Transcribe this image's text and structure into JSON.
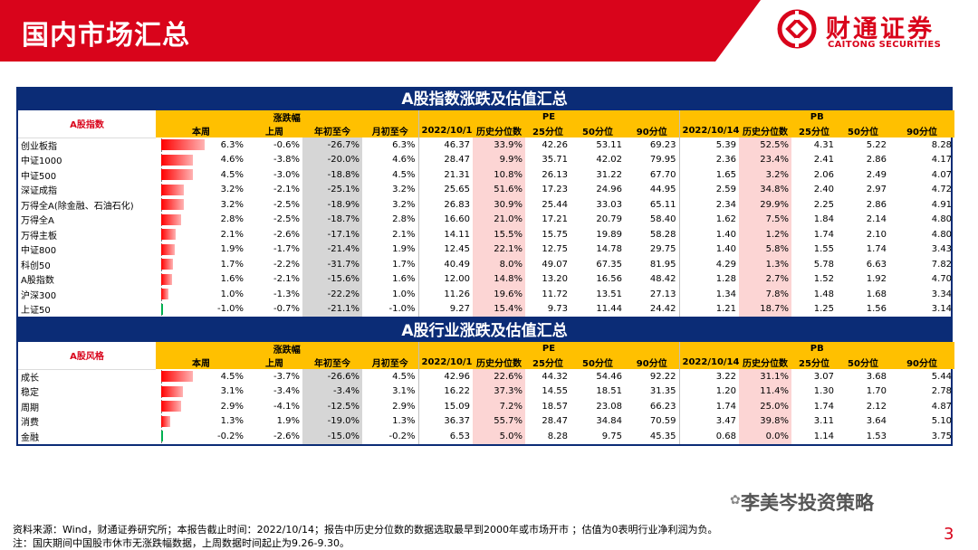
{
  "header": {
    "title": "国内市场汇总",
    "logo_cn": "财通证券",
    "logo_en": "CAITONG SECURITIES"
  },
  "index_table": {
    "title": "A股指数涨跌及估值汇总",
    "corner": "A股指数",
    "group_change": "涨跌幅",
    "group_pe": "PE",
    "group_pb": "PB",
    "cols_change": [
      "本周",
      "上周",
      "年初至今",
      "月初至今"
    ],
    "cols_val": [
      "2022/10/14",
      "历史分位数",
      "25分位",
      "50分位",
      "90分位"
    ],
    "rows": [
      {
        "name": "创业板指",
        "wk": "6.3%",
        "wk_num": 6.3,
        "lw": "-0.6%",
        "ytd": "-26.7%",
        "mtd": "6.3%",
        "pe": [
          "46.37",
          "33.9%",
          "42.26",
          "53.11",
          "69.23"
        ],
        "pb": [
          "5.39",
          "52.5%",
          "4.31",
          "5.22",
          "8.28"
        ]
      },
      {
        "name": "中证1000",
        "wk": "4.6%",
        "wk_num": 4.6,
        "lw": "-3.8%",
        "ytd": "-20.0%",
        "mtd": "4.6%",
        "pe": [
          "28.47",
          "9.9%",
          "35.71",
          "42.02",
          "79.95"
        ],
        "pb": [
          "2.36",
          "23.4%",
          "2.41",
          "2.86",
          "4.17"
        ]
      },
      {
        "name": "中证500",
        "wk": "4.5%",
        "wk_num": 4.5,
        "lw": "-3.0%",
        "ytd": "-18.8%",
        "mtd": "4.5%",
        "pe": [
          "21.31",
          "10.8%",
          "26.13",
          "31.22",
          "67.70"
        ],
        "pb": [
          "1.65",
          "3.2%",
          "2.06",
          "2.49",
          "4.07"
        ]
      },
      {
        "name": "深证成指",
        "wk": "3.2%",
        "wk_num": 3.2,
        "lw": "-2.1%",
        "ytd": "-25.1%",
        "mtd": "3.2%",
        "pe": [
          "25.65",
          "51.6%",
          "17.23",
          "24.96",
          "44.95"
        ],
        "pb": [
          "2.59",
          "34.8%",
          "2.40",
          "2.97",
          "4.72"
        ]
      },
      {
        "name": "万得全A(除金融、石油石化)",
        "wk": "3.2%",
        "wk_num": 3.2,
        "lw": "-2.5%",
        "ytd": "-18.9%",
        "mtd": "3.2%",
        "pe": [
          "26.83",
          "30.9%",
          "25.44",
          "33.03",
          "65.11"
        ],
        "pb": [
          "2.34",
          "29.9%",
          "2.25",
          "2.86",
          "4.91"
        ]
      },
      {
        "name": "万得全A",
        "wk": "2.8%",
        "wk_num": 2.8,
        "lw": "-2.5%",
        "ytd": "-18.7%",
        "mtd": "2.8%",
        "pe": [
          "16.60",
          "21.0%",
          "17.21",
          "20.79",
          "58.40"
        ],
        "pb": [
          "1.62",
          "7.5%",
          "1.84",
          "2.14",
          "4.80"
        ]
      },
      {
        "name": "万得主板",
        "wk": "2.1%",
        "wk_num": 2.1,
        "lw": "-2.6%",
        "ytd": "-17.1%",
        "mtd": "2.1%",
        "pe": [
          "14.11",
          "15.5%",
          "15.75",
          "19.89",
          "58.28"
        ],
        "pb": [
          "1.40",
          "1.2%",
          "1.74",
          "2.10",
          "4.80"
        ]
      },
      {
        "name": "中证800",
        "wk": "1.9%",
        "wk_num": 1.9,
        "lw": "-1.7%",
        "ytd": "-21.4%",
        "mtd": "1.9%",
        "pe": [
          "12.45",
          "22.1%",
          "12.75",
          "14.78",
          "29.75"
        ],
        "pb": [
          "1.40",
          "5.8%",
          "1.55",
          "1.74",
          "3.43"
        ]
      },
      {
        "name": "科创50",
        "wk": "1.7%",
        "wk_num": 1.7,
        "lw": "-2.2%",
        "ytd": "-31.7%",
        "mtd": "1.7%",
        "pe": [
          "40.49",
          "8.0%",
          "49.07",
          "67.35",
          "81.95"
        ],
        "pb": [
          "4.29",
          "1.3%",
          "5.78",
          "6.63",
          "7.82"
        ]
      },
      {
        "name": "A股指数",
        "wk": "1.6%",
        "wk_num": 1.6,
        "lw": "-2.1%",
        "ytd": "-15.6%",
        "mtd": "1.6%",
        "pe": [
          "12.00",
          "14.8%",
          "13.20",
          "16.56",
          "48.42"
        ],
        "pb": [
          "1.28",
          "2.7%",
          "1.52",
          "1.92",
          "4.70"
        ]
      },
      {
        "name": "沪深300",
        "wk": "1.0%",
        "wk_num": 1.0,
        "lw": "-1.3%",
        "ytd": "-22.2%",
        "mtd": "1.0%",
        "pe": [
          "11.26",
          "19.6%",
          "11.72",
          "13.51",
          "27.13"
        ],
        "pb": [
          "1.34",
          "7.8%",
          "1.48",
          "1.68",
          "3.34"
        ]
      },
      {
        "name": "上证50",
        "wk": "-1.0%",
        "wk_num": -1.0,
        "lw": "-0.7%",
        "ytd": "-21.1%",
        "mtd": "-1.0%",
        "pe": [
          "9.27",
          "15.4%",
          "9.73",
          "11.44",
          "24.42"
        ],
        "pb": [
          "1.21",
          "18.7%",
          "1.25",
          "1.56",
          "3.14"
        ]
      }
    ]
  },
  "style_table": {
    "title": "A股行业涨跌及估值汇总",
    "corner": "A股风格",
    "group_change": "涨跌幅",
    "group_pe": "PE",
    "group_pb": "PB",
    "cols_change": [
      "本周",
      "上周",
      "年初至今",
      "月初至今"
    ],
    "cols_val": [
      "2022/10/14",
      "历史分位数",
      "25分位",
      "50分位",
      "90分位"
    ],
    "rows": [
      {
        "name": "成长",
        "wk": "4.5%",
        "wk_num": 4.5,
        "lw": "-3.7%",
        "ytd": "-26.6%",
        "mtd": "4.5%",
        "pe": [
          "42.96",
          "22.6%",
          "44.32",
          "54.46",
          "92.22"
        ],
        "pb": [
          "3.22",
          "31.1%",
          "3.07",
          "3.68",
          "5.44"
        ]
      },
      {
        "name": "稳定",
        "wk": "3.1%",
        "wk_num": 3.1,
        "lw": "-3.4%",
        "ytd": "-3.4%",
        "mtd": "3.1%",
        "pe": [
          "16.22",
          "37.3%",
          "14.55",
          "18.51",
          "31.35"
        ],
        "pb": [
          "1.20",
          "11.4%",
          "1.30",
          "1.70",
          "2.78"
        ]
      },
      {
        "name": "周期",
        "wk": "2.9%",
        "wk_num": 2.9,
        "lw": "-4.1%",
        "ytd": "-12.5%",
        "mtd": "2.9%",
        "pe": [
          "15.09",
          "7.2%",
          "18.57",
          "23.08",
          "66.23"
        ],
        "pb": [
          "1.74",
          "25.0%",
          "1.74",
          "2.12",
          "4.87"
        ]
      },
      {
        "name": "消费",
        "wk": "1.3%",
        "wk_num": 1.3,
        "lw": "1.9%",
        "ytd": "-19.0%",
        "mtd": "1.3%",
        "pe": [
          "36.37",
          "55.7%",
          "28.47",
          "34.84",
          "70.59"
        ],
        "pb": [
          "3.47",
          "39.8%",
          "3.11",
          "3.64",
          "5.10"
        ]
      },
      {
        "name": "金融",
        "wk": "-0.2%",
        "wk_num": -0.2,
        "lw": "-2.6%",
        "ytd": "-15.0%",
        "mtd": "-0.2%",
        "pe": [
          "6.53",
          "5.0%",
          "8.28",
          "9.75",
          "45.35"
        ],
        "pb": [
          "0.68",
          "0.0%",
          "1.14",
          "1.53",
          "3.75"
        ]
      }
    ]
  },
  "footnotes": {
    "line1": "资料来源：Wind，财通证券研究所；本报告截止时间：2022/10/14；报告中历史分位数的数据选取最早到2000年或市场开市 ；估值为0表明行业净利润为负。",
    "line2": "注：国庆期间中国股市休市无涨跌幅数据，上周数据时间起止为9.26-9.30。"
  },
  "watermark": "李美岑投资策略",
  "page_number": "3"
}
